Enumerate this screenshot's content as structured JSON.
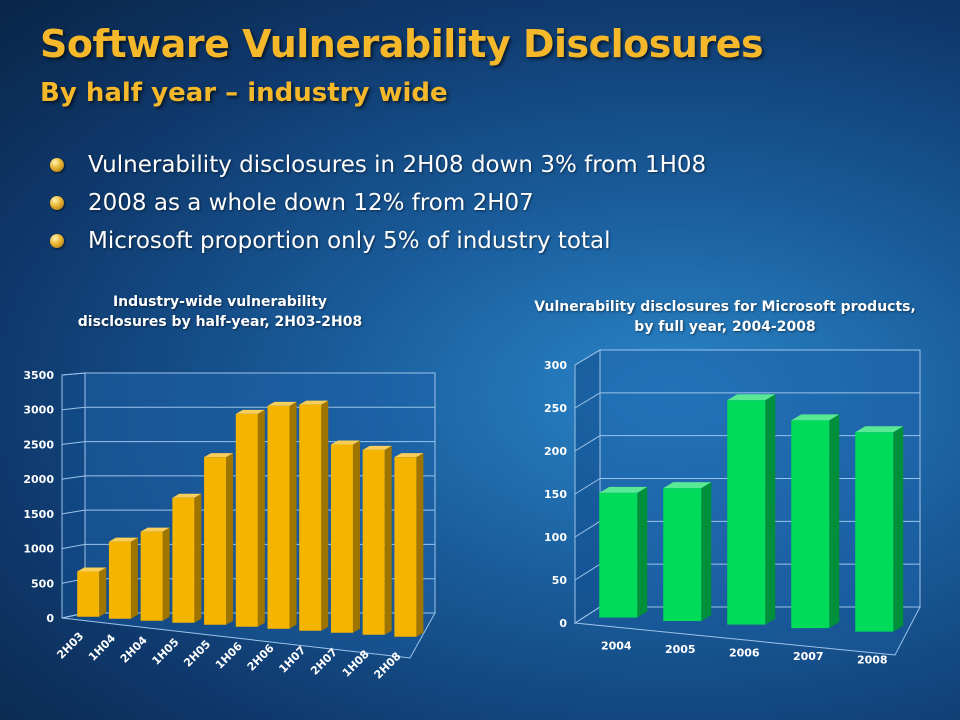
{
  "slide": {
    "title": "Software Vulnerability Disclosures",
    "subtitle": "By half year – industry wide",
    "bullets": [
      "Vulnerability disclosures in 2H08 down 3% from 1H08",
      "2008 as a whole down 12% from 2H07",
      "Microsoft proportion only 5% of industry total"
    ]
  },
  "chart_data": [
    {
      "type": "bar",
      "title": "Industry-wide vulnerability disclosures by half-year, 2H03-2H08",
      "title_lines": [
        "Industry-wide vulnerability",
        "disclosures by half-year, 2H03-2H08"
      ],
      "categories": [
        "2H03",
        "1H04",
        "2H04",
        "1H05",
        "2H05",
        "1H06",
        "2H06",
        "1H07",
        "2H07",
        "1H08",
        "2H08"
      ],
      "values": [
        680,
        1160,
        1340,
        1880,
        2520,
        3200,
        3350,
        3400,
        2830,
        2780,
        2700
      ],
      "ylim": [
        0,
        3500
      ],
      "yticks": [
        "0",
        "500",
        "1000",
        "1500",
        "2000",
        "2500",
        "3000",
        "3500"
      ],
      "color": "#f5b400",
      "grid": true
    },
    {
      "type": "bar",
      "title": "Vulnerability disclosures for Microsoft products, by full year, 2004-2008",
      "title_lines": [
        "Vulnerability disclosures for Microsoft products,",
        "by full year, 2004-2008"
      ],
      "categories": [
        "2004",
        "2005",
        "2006",
        "2007",
        "2008"
      ],
      "values": [
        150,
        160,
        270,
        250,
        240
      ],
      "ylim": [
        0,
        300
      ],
      "yticks": [
        "0",
        "50",
        "100",
        "150",
        "200",
        "250",
        "300"
      ],
      "color": "#00dc5a",
      "grid": true
    }
  ]
}
